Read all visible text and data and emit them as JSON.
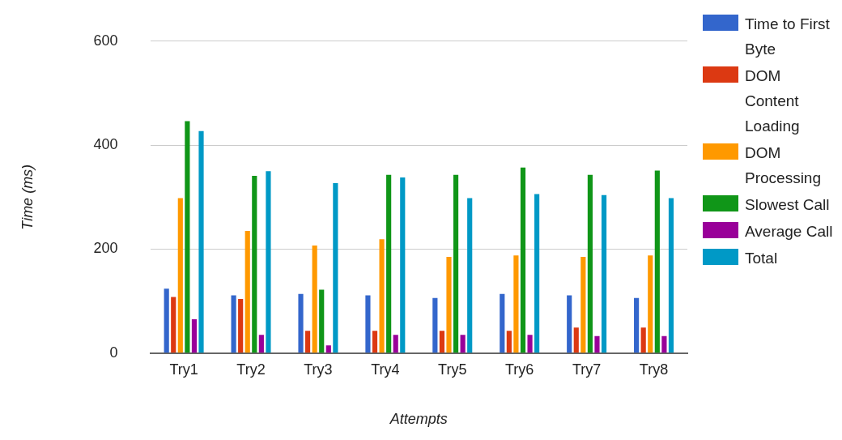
{
  "chart_data": {
    "type": "bar",
    "xlabel": "Attempts",
    "ylabel": "Time (ms)",
    "categories": [
      "Try1",
      "Try2",
      "Try3",
      "Try4",
      "Try5",
      "Try6",
      "Try7",
      "Try8"
    ],
    "series": [
      {
        "name": "Time to First Byte",
        "color": "#3366cc",
        "values": [
          124,
          111,
          114,
          111,
          106,
          114,
          111,
          106
        ]
      },
      {
        "name": "DOM Content Loading",
        "color": "#dc3912",
        "values": [
          108,
          104,
          43,
          43,
          43,
          43,
          49,
          49
        ]
      },
      {
        "name": "DOM Processing",
        "color": "#ff9900",
        "values": [
          298,
          235,
          207,
          219,
          185,
          188,
          185,
          188
        ]
      },
      {
        "name": "Slowest Call",
        "color": "#109618",
        "values": [
          446,
          341,
          122,
          343,
          343,
          357,
          343,
          351
        ]
      },
      {
        "name": "Average Call",
        "color": "#990099",
        "values": [
          65,
          35,
          15,
          35,
          35,
          35,
          33,
          33
        ]
      },
      {
        "name": "Total",
        "color": "#0099c6",
        "values": [
          427,
          350,
          327,
          338,
          298,
          306,
          304,
          298
        ]
      }
    ],
    "ylim": [
      0,
      600
    ],
    "yticks": [
      0,
      200,
      400,
      600
    ],
    "grid": "y",
    "legend": "right"
  }
}
